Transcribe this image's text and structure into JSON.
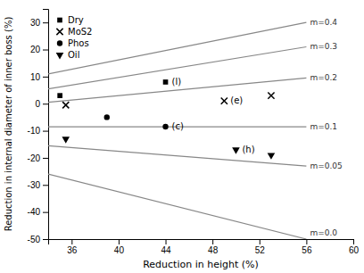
{
  "chart_data": {
    "type": "scatter",
    "xlabel": "Reduction in height (%)",
    "ylabel": "Reduction in internal diameter of inner boss (%)",
    "xlim": [
      34,
      60
    ],
    "ylim": [
      -50,
      35
    ],
    "xticks": [
      36,
      40,
      44,
      48,
      52,
      56,
      60
    ],
    "yticks": [
      -50,
      -40,
      -30,
      -20,
      -10,
      0,
      10,
      20,
      30
    ],
    "grid": false,
    "legend": "upper left",
    "series": [
      {
        "name": "m=0.4",
        "type": "line",
        "color": "#888888",
        "x": [
          34,
          56
        ],
        "values": [
          11,
          30
        ]
      },
      {
        "name": "m=0.3",
        "type": "line",
        "color": "#888888",
        "x": [
          34,
          56
        ],
        "values": [
          5.5,
          21
        ]
      },
      {
        "name": "m=0.2",
        "type": "line",
        "color": "#888888",
        "x": [
          34,
          56
        ],
        "values": [
          0.5,
          9.5
        ]
      },
      {
        "name": "m=0.1",
        "type": "line",
        "color": "#888888",
        "x": [
          34,
          56
        ],
        "values": [
          -8.5,
          -8.5
        ]
      },
      {
        "name": "m=0.05",
        "type": "line",
        "color": "#888888",
        "x": [
          34,
          56
        ],
        "values": [
          -15.5,
          -23
        ]
      },
      {
        "name": "m=0.0",
        "type": "line",
        "color": "#888888",
        "x": [
          34,
          56
        ],
        "values": [
          -26,
          -50
        ]
      },
      {
        "name": "Dry",
        "type": "scatter",
        "marker": "square",
        "color": "#000000",
        "x": [
          35,
          44
        ],
        "values": [
          3,
          8
        ],
        "labels": [
          null,
          "(l)"
        ]
      },
      {
        "name": "MoS2",
        "type": "scatter",
        "marker": "x",
        "color": "#000000",
        "x": [
          35.5,
          49,
          53
        ],
        "values": [
          -0.5,
          1,
          3
        ],
        "labels": [
          null,
          "(e)",
          null
        ]
      },
      {
        "name": "Phos",
        "type": "scatter",
        "marker": "circle",
        "color": "#000000",
        "x": [
          39,
          44
        ],
        "values": [
          -5,
          -8.5
        ],
        "labels": [
          null,
          "(c)"
        ]
      },
      {
        "name": "Oil",
        "type": "scatter",
        "marker": "triangle-down",
        "color": "#000000",
        "x": [
          35.5,
          50,
          53
        ],
        "values": [
          -13,
          -17,
          -19
        ],
        "labels": [
          null,
          "(h)",
          null
        ]
      }
    ]
  }
}
